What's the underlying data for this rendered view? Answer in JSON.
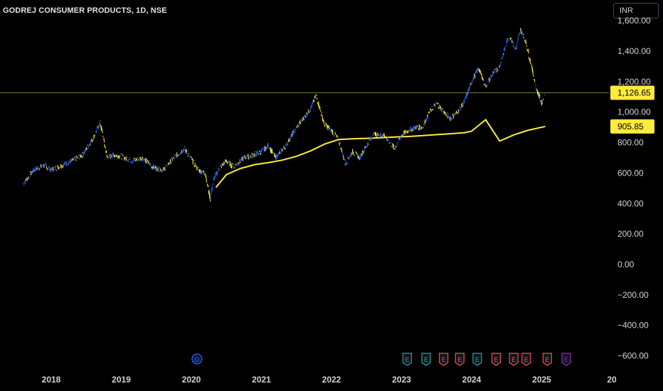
{
  "header": {
    "title": "GODREJ CONSUMER PRODUCTS, 1D, NSE",
    "currency": "INR"
  },
  "colors": {
    "background": "#000000",
    "price_up": "#2962ff",
    "price_down": "#ffeb3b",
    "ma_line": "#ffeb3b",
    "price_line": "#6b7a2e",
    "axis_text": "#d1d4dc"
  },
  "chart_data": {
    "type": "line",
    "title": "GODREJ CONSUMER PRODUCTS, 1D, NSE",
    "x_ticks": [
      "2018",
      "2019",
      "2020",
      "2021",
      "2022",
      "2023",
      "2024",
      "2025",
      "20"
    ],
    "y_ticks": [
      "−600.00",
      "−400.00",
      "−200.00",
      "0.00",
      "200.00",
      "400.00",
      "600.00",
      "800.00",
      "1,000.00",
      "1,200.00",
      "1,400.00",
      "1,600.00"
    ],
    "ylim": [
      -640,
      1650
    ],
    "xlim": [
      2017.6,
      2026.6
    ],
    "current_price_label": "1,126.65",
    "current_price": 1126.65,
    "ma_label": "905.85",
    "ma_value": 905.85,
    "series": [
      {
        "role": "price",
        "x": [
          2017.6,
          2017.75,
          2017.9,
          2018.0,
          2018.15,
          2018.3,
          2018.45,
          2018.6,
          2018.7,
          2018.8,
          2018.9,
          2019.0,
          2019.15,
          2019.3,
          2019.45,
          2019.6,
          2019.75,
          2019.9,
          2020.0,
          2020.1,
          2020.2,
          2020.27,
          2020.32,
          2020.4,
          2020.5,
          2020.6,
          2020.75,
          2020.9,
          2021.0,
          2021.1,
          2021.2,
          2021.35,
          2021.5,
          2021.6,
          2021.7,
          2021.78,
          2021.9,
          2022.0,
          2022.1,
          2022.2,
          2022.3,
          2022.4,
          2022.5,
          2022.6,
          2022.75,
          2022.9,
          2023.0,
          2023.1,
          2023.2,
          2023.3,
          2023.4,
          2023.5,
          2023.6,
          2023.7,
          2023.8,
          2023.9,
          2024.0,
          2024.1,
          2024.2,
          2024.3,
          2024.4,
          2024.5,
          2024.55,
          2024.63,
          2024.7,
          2024.78,
          2024.85,
          2024.92,
          2025.0,
          2025.05
        ],
        "y": [
          530,
          620,
          650,
          620,
          650,
          680,
          720,
          830,
          930,
          700,
          720,
          710,
          680,
          700,
          640,
          620,
          700,
          760,
          690,
          620,
          600,
          430,
          560,
          630,
          680,
          640,
          700,
          720,
          740,
          780,
          700,
          780,
          900,
          960,
          1020,
          1110,
          920,
          880,
          820,
          660,
          740,
          700,
          780,
          850,
          850,
          760,
          850,
          880,
          900,
          900,
          1000,
          1060,
          1000,
          960,
          1000,
          1070,
          1200,
          1290,
          1170,
          1250,
          1300,
          1460,
          1500,
          1410,
          1540,
          1450,
          1310,
          1160,
          1060,
          1127
        ]
      },
      {
        "role": "moving_average",
        "x": [
          2020.35,
          2020.5,
          2020.7,
          2020.9,
          2021.1,
          2021.3,
          2021.5,
          2021.7,
          2021.9,
          2022.1,
          2022.3,
          2022.5,
          2022.7,
          2022.9,
          2023.1,
          2023.3,
          2023.5,
          2023.7,
          2023.9,
          2024.0,
          2024.2,
          2024.4,
          2024.6,
          2024.8,
          2025.05
        ],
        "y": [
          505,
          590,
          630,
          655,
          668,
          685,
          710,
          745,
          790,
          820,
          825,
          828,
          832,
          836,
          840,
          846,
          852,
          858,
          865,
          875,
          950,
          810,
          850,
          880,
          905.85
        ]
      }
    ]
  },
  "events": [
    {
      "label": "D",
      "year": 2020.08,
      "color": "#2962ff"
    },
    {
      "label": "E",
      "year": 2023.08,
      "color": "#26a69a"
    },
    {
      "label": "E",
      "year": 2023.35,
      "color": "#26a69a"
    },
    {
      "label": "E",
      "year": 2023.6,
      "color": "#ef5350"
    },
    {
      "label": "E",
      "year": 2023.83,
      "color": "#ef5350"
    },
    {
      "label": "E",
      "year": 2024.08,
      "color": "#26a69a"
    },
    {
      "label": "E",
      "year": 2024.35,
      "color": "#ef5350"
    },
    {
      "label": "E",
      "year": 2024.6,
      "color": "#ef5350"
    },
    {
      "label": "E",
      "year": 2024.78,
      "color": "#ef5350"
    },
    {
      "label": "E",
      "year": 2025.08,
      "color": "#ef5350"
    },
    {
      "label": "E",
      "year": 2025.35,
      "color": "#9c27b0"
    }
  ]
}
